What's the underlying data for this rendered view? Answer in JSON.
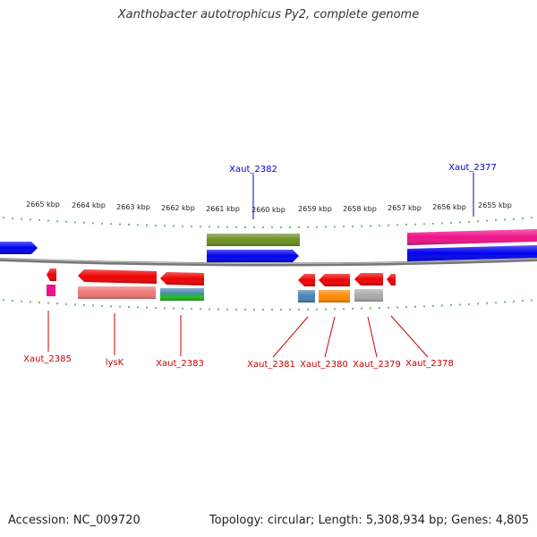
{
  "title": "Xanthobacter autotrophicus Py2, complete genome",
  "footer": {
    "accession": "Accession: NC_009720",
    "summary": "Topology: circular; Length: 5,308,934 bp; Genes: 4,805"
  },
  "colors": {
    "backbone": "#7f7f7f",
    "tick": "#1b8a1b",
    "forward_label": "#0000cc",
    "reverse_label": "#cc0000",
    "blue": "#0000ee",
    "olive": "#6b8e23",
    "magenta": "#ee1188",
    "red": "#ee0000",
    "pink": "#ee7777",
    "steel": "#4682b4",
    "green": "#22bb22",
    "orange": "#ff8800",
    "gray": "#aaaaaa"
  },
  "scale_labels": [
    "2665 kbp",
    "2664 kbp",
    "2663 kbp",
    "2662 kbp",
    "2661 kbp",
    "2660 kbp",
    "2659 kbp",
    "2658 kbp",
    "2657 kbp",
    "2656 kbp",
    "2655 kbp"
  ],
  "gene_labels": [
    {
      "text": "Xaut_2382",
      "strand": "forward"
    },
    {
      "text": "Xaut_2377",
      "strand": "forward"
    },
    {
      "text": "Xaut_2385",
      "strand": "reverse"
    },
    {
      "text": "lysK",
      "strand": "reverse"
    },
    {
      "text": "Xaut_2383",
      "strand": "reverse"
    },
    {
      "text": "Xaut_2381",
      "strand": "reverse"
    },
    {
      "text": "Xaut_2380",
      "strand": "reverse"
    },
    {
      "text": "Xaut_2379",
      "strand": "reverse"
    },
    {
      "text": "Xaut_2378",
      "strand": "reverse"
    }
  ]
}
